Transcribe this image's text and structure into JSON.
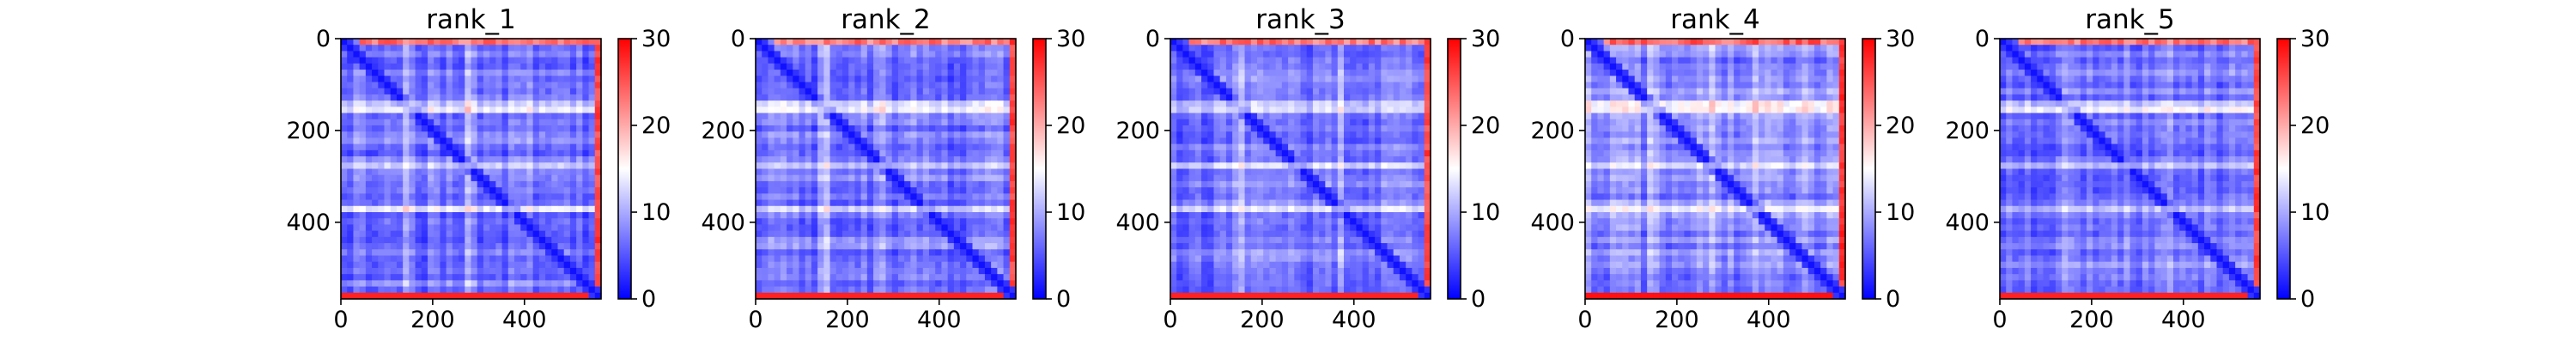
{
  "chart_data": [
    {
      "type": "heatmap",
      "title": "rank_1",
      "x_ticks": [
        0,
        200,
        400
      ],
      "y_ticks": [
        0,
        200,
        400
      ],
      "xlim": [
        0,
        567
      ],
      "ylim": [
        567,
        0
      ],
      "colorbar": {
        "min": 0,
        "max": 30,
        "ticks": [
          0,
          10,
          20,
          30
        ],
        "colormap": "bwr"
      },
      "background_level": 7,
      "edge_level": 26,
      "bright_rows": [
        375,
        150,
        280
      ],
      "bright_cols": [
        375,
        150,
        280
      ],
      "pattern_seed": 11
    },
    {
      "type": "heatmap",
      "title": "rank_2",
      "x_ticks": [
        0,
        200,
        400
      ],
      "y_ticks": [
        0,
        200,
        400
      ],
      "xlim": [
        0,
        567
      ],
      "ylim": [
        567,
        0
      ],
      "colorbar": {
        "min": 0,
        "max": 30,
        "ticks": [
          0,
          10,
          20,
          30
        ],
        "colormap": "bwr"
      },
      "background_level": 7,
      "edge_level": 26,
      "bright_rows": [
        375,
        150,
        280
      ],
      "bright_cols": [
        375,
        150,
        280
      ],
      "pattern_seed": 23
    },
    {
      "type": "heatmap",
      "title": "rank_3",
      "x_ticks": [
        0,
        200,
        400
      ],
      "y_ticks": [
        0,
        200,
        400
      ],
      "xlim": [
        0,
        567
      ],
      "ylim": [
        567,
        0
      ],
      "colorbar": {
        "min": 0,
        "max": 30,
        "ticks": [
          0,
          10,
          20,
          30
        ],
        "colormap": "bwr"
      },
      "background_level": 7,
      "edge_level": 26,
      "bright_rows": [
        375,
        150,
        280
      ],
      "bright_cols": [
        375,
        150,
        280
      ],
      "pattern_seed": 37
    },
    {
      "type": "heatmap",
      "title": "rank_4",
      "x_ticks": [
        0,
        200,
        400
      ],
      "y_ticks": [
        0,
        200,
        400
      ],
      "xlim": [
        0,
        567
      ],
      "ylim": [
        567,
        0
      ],
      "colorbar": {
        "min": 0,
        "max": 30,
        "ticks": [
          0,
          10,
          20,
          30
        ],
        "colormap": "bwr"
      },
      "background_level": 8,
      "edge_level": 27,
      "bright_rows": [
        375,
        150,
        280
      ],
      "bright_cols": [
        375,
        150,
        280
      ],
      "pattern_seed": 41
    },
    {
      "type": "heatmap",
      "title": "rank_5",
      "x_ticks": [
        0,
        200,
        400
      ],
      "y_ticks": [
        0,
        200,
        400
      ],
      "xlim": [
        0,
        567
      ],
      "ylim": [
        567,
        0
      ],
      "colorbar": {
        "min": 0,
        "max": 30,
        "ticks": [
          0,
          10,
          20,
          30
        ],
        "colormap": "bwr"
      },
      "background_level": 7,
      "edge_level": 26,
      "bright_rows": [
        375,
        150,
        280
      ],
      "bright_cols": [
        375,
        150,
        280
      ],
      "pattern_seed": 53
    }
  ]
}
